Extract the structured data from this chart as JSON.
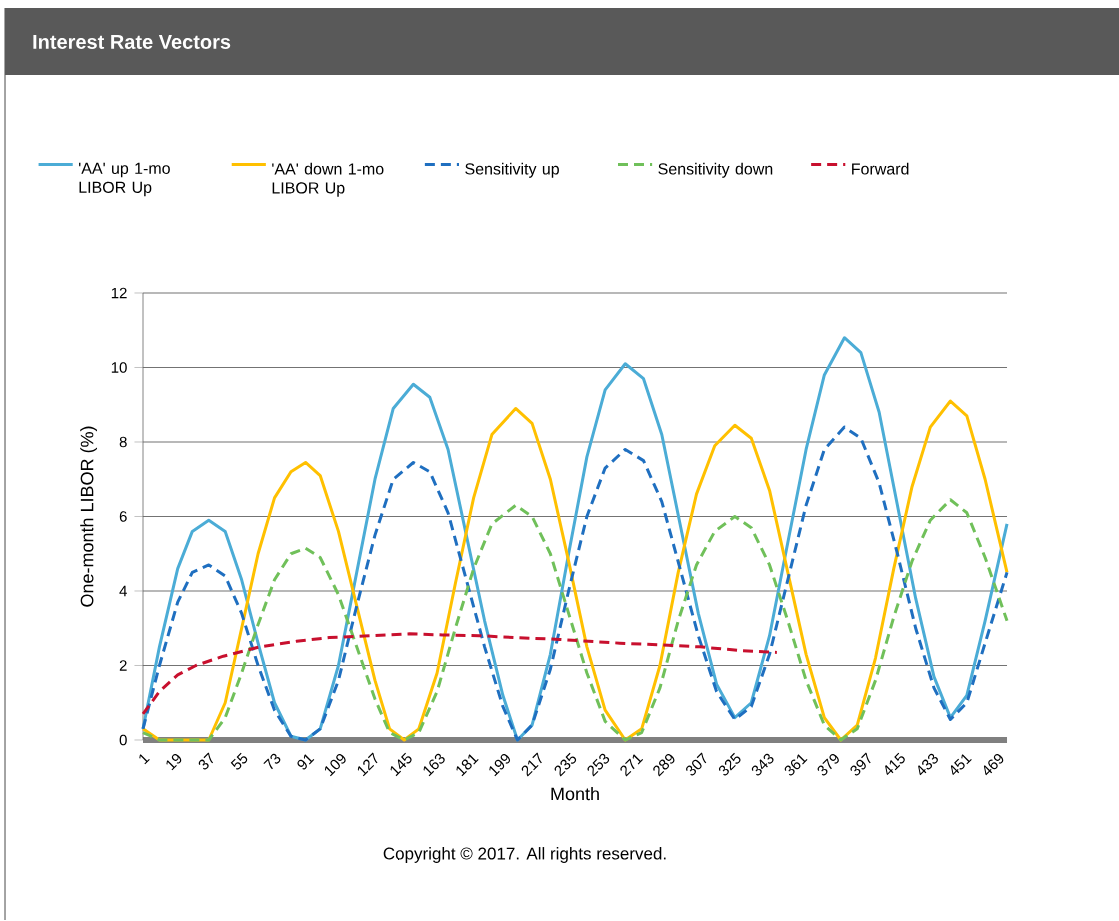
{
  "chart_data": {
    "type": "line",
    "title": "Interest Rate Vectors",
    "xlabel": "Month",
    "ylabel": "One-month LIBOR (%)",
    "annotations": [
      "Copyright © 2017. All rights reserved."
    ],
    "xlim": [
      1,
      474
    ],
    "ylim": [
      0,
      12
    ],
    "xticks": [
      1,
      19,
      37,
      55,
      73,
      91,
      109,
      127,
      145,
      163,
      181,
      199,
      217,
      235,
      253,
      271,
      289,
      307,
      325,
      343,
      361,
      379,
      397,
      415,
      433,
      451,
      469
    ],
    "yticks": [
      0,
      2,
      4,
      6,
      8,
      10,
      12
    ],
    "grid": "y",
    "legend": "top",
    "marker": "none",
    "series": [
      {
        "name": "'AA' up 1-mo LIBOR Up",
        "color": "#4bacd6",
        "line_style": "solid",
        "x": [
          1,
          10,
          20,
          28,
          37,
          46,
          55,
          64,
          73,
          82,
          90,
          98,
          108,
          118,
          128,
          138,
          149,
          158,
          168,
          178,
          188,
          198,
          206,
          214,
          224,
          234,
          244,
          254,
          265,
          275,
          285,
          295,
          305,
          315,
          325,
          334,
          344,
          354,
          364,
          374,
          385,
          394,
          404,
          414,
          424,
          434,
          443,
          452,
          462,
          474
        ],
        "values": [
          0.3,
          2.5,
          4.6,
          5.6,
          5.9,
          5.6,
          4.3,
          2.6,
          1.0,
          0.1,
          0.0,
          0.3,
          2.0,
          4.5,
          7.0,
          8.9,
          9.55,
          9.2,
          7.8,
          5.5,
          3.2,
          1.2,
          0.0,
          0.4,
          2.3,
          5.0,
          7.6,
          9.4,
          10.1,
          9.7,
          8.2,
          5.8,
          3.4,
          1.5,
          0.6,
          1.0,
          2.8,
          5.3,
          7.8,
          9.8,
          10.8,
          10.4,
          8.8,
          6.3,
          3.8,
          1.7,
          0.6,
          1.2,
          3.2,
          5.8
        ]
      },
      {
        "name": "'AA' down 1-mo LIBOR Up",
        "color": "#ffc000",
        "line_style": "solid",
        "x": [
          1,
          10,
          37,
          46,
          55,
          64,
          73,
          82,
          90,
          98,
          108,
          118,
          128,
          136,
          144,
          152,
          162,
          172,
          182,
          192,
          205,
          214,
          224,
          234,
          244,
          254,
          265,
          274,
          284,
          294,
          304,
          314,
          325,
          334,
          344,
          354,
          364,
          374,
          383,
          392,
          402,
          412,
          422,
          432,
          443,
          452,
          462,
          474
        ],
        "values": [
          0.3,
          0.0,
          0.0,
          1.0,
          3.0,
          5.0,
          6.5,
          7.2,
          7.45,
          7.1,
          5.6,
          3.6,
          1.6,
          0.3,
          0.0,
          0.3,
          1.8,
          4.2,
          6.5,
          8.2,
          8.9,
          8.5,
          7.0,
          4.8,
          2.5,
          0.8,
          0.0,
          0.3,
          2.0,
          4.5,
          6.6,
          7.9,
          8.45,
          8.1,
          6.7,
          4.5,
          2.3,
          0.6,
          0.0,
          0.4,
          2.2,
          4.6,
          6.8,
          8.4,
          9.1,
          8.7,
          7.0,
          4.5
        ]
      },
      {
        "name": "Sensitivity up",
        "color": "#1f6fc0",
        "line_style": "dashed",
        "x": [
          1,
          10,
          20,
          28,
          37,
          46,
          55,
          64,
          73,
          82,
          90,
          98,
          108,
          118,
          128,
          138,
          149,
          158,
          168,
          178,
          188,
          198,
          206,
          214,
          224,
          234,
          244,
          254,
          265,
          275,
          285,
          295,
          305,
          315,
          325,
          334,
          344,
          354,
          364,
          374,
          385,
          394,
          404,
          414,
          424,
          434,
          443,
          452,
          462,
          474
        ],
        "values": [
          0.3,
          2.0,
          3.7,
          4.5,
          4.7,
          4.4,
          3.4,
          2.0,
          0.8,
          0.1,
          0.0,
          0.3,
          1.6,
          3.6,
          5.5,
          7.0,
          7.45,
          7.2,
          6.1,
          4.3,
          2.5,
          0.9,
          0.0,
          0.4,
          1.9,
          4.0,
          6.0,
          7.3,
          7.8,
          7.5,
          6.4,
          4.6,
          2.8,
          1.3,
          0.55,
          0.9,
          2.3,
          4.3,
          6.3,
          7.8,
          8.4,
          8.1,
          6.9,
          5.0,
          3.0,
          1.4,
          0.55,
          1.0,
          2.6,
          4.5
        ]
      },
      {
        "name": "Sensitivity down",
        "color": "#70c05a",
        "line_style": "dashed",
        "x": [
          1,
          10,
          37,
          46,
          55,
          64,
          73,
          82,
          90,
          98,
          108,
          118,
          128,
          136,
          144,
          152,
          162,
          172,
          182,
          192,
          205,
          214,
          224,
          234,
          244,
          254,
          265,
          274,
          284,
          294,
          304,
          314,
          325,
          334,
          344,
          354,
          364,
          374,
          383,
          392,
          402,
          412,
          422,
          432,
          443,
          452,
          462,
          474
        ],
        "values": [
          0.2,
          0.0,
          0.0,
          0.6,
          1.8,
          3.1,
          4.3,
          5.0,
          5.15,
          4.9,
          3.9,
          2.5,
          1.1,
          0.2,
          0.0,
          0.2,
          1.3,
          3.0,
          4.6,
          5.8,
          6.3,
          6.0,
          5.0,
          3.4,
          1.8,
          0.5,
          0.0,
          0.2,
          1.4,
          3.2,
          4.7,
          5.6,
          6.0,
          5.7,
          4.7,
          3.2,
          1.6,
          0.4,
          0.0,
          0.3,
          1.6,
          3.3,
          4.8,
          5.9,
          6.45,
          6.1,
          4.9,
          3.2
        ]
      },
      {
        "name": "Forward",
        "color": "#c8102e",
        "line_style": "dashed",
        "x": [
          1,
          10,
          20,
          30,
          45,
          65,
          85,
          103,
          125,
          147,
          165,
          185,
          205,
          229,
          245,
          262,
          285,
          306,
          328,
          348
        ],
        "values": [
          0.7,
          1.3,
          1.75,
          2.0,
          2.25,
          2.5,
          2.65,
          2.75,
          2.8,
          2.85,
          2.82,
          2.8,
          2.75,
          2.7,
          2.65,
          2.6,
          2.55,
          2.5,
          2.4,
          2.35
        ]
      }
    ]
  }
}
